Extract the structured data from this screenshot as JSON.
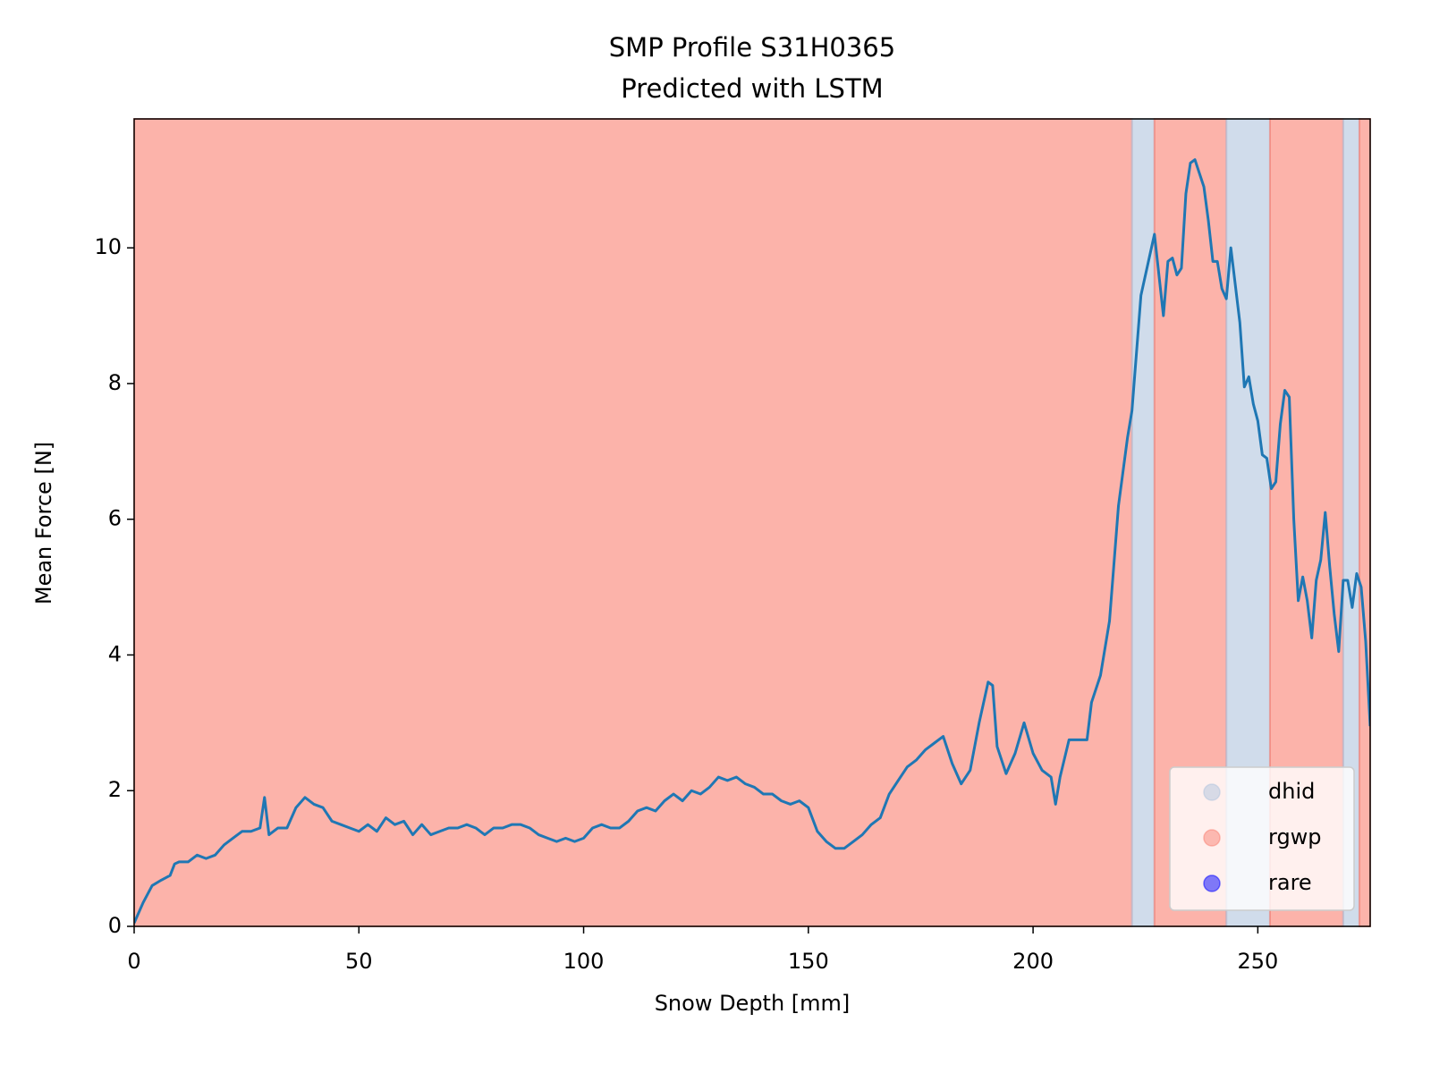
{
  "chart_data": {
    "type": "line",
    "title": "SMP Profile S31H0365",
    "subtitle": "Predicted with LSTM",
    "xlabel": "Snow Depth [mm]",
    "ylabel": "Mean Force [N]",
    "xlim": [
      0,
      275
    ],
    "ylim": [
      0,
      11.9
    ],
    "xticks": [
      0,
      50,
      100,
      150,
      200,
      250
    ],
    "yticks": [
      0,
      2,
      4,
      6,
      8,
      10
    ],
    "line_color": "#1f77b4",
    "classes": [
      {
        "name": "dhid",
        "color": "#b0c4de"
      },
      {
        "name": "rgwp",
        "color": "#fa8072"
      },
      {
        "name": "rare",
        "color": "#0000ff"
      }
    ],
    "legend_position": "lower right",
    "bands": [
      {
        "start": 0,
        "end": 222,
        "class": "rgwp"
      },
      {
        "start": 222,
        "end": 227,
        "class": "dhid"
      },
      {
        "start": 227,
        "end": 243,
        "class": "rgwp"
      },
      {
        "start": 243,
        "end": 252.7,
        "class": "dhid"
      },
      {
        "start": 252.7,
        "end": 269,
        "class": "rgwp"
      },
      {
        "start": 269,
        "end": 272.6,
        "class": "dhid"
      },
      {
        "start": 272.6,
        "end": 275,
        "class": "rgwp"
      }
    ],
    "x": [
      0,
      2,
      4,
      6,
      8,
      9,
      10,
      12,
      14,
      16,
      18,
      20,
      22,
      24,
      26,
      28,
      29,
      30,
      32,
      34,
      36,
      38,
      40,
      42,
      44,
      46,
      48,
      50,
      52,
      54,
      56,
      58,
      60,
      62,
      64,
      66,
      68,
      70,
      72,
      74,
      76,
      78,
      80,
      82,
      84,
      86,
      88,
      90,
      92,
      94,
      96,
      98,
      100,
      102,
      104,
      106,
      108,
      110,
      112,
      114,
      116,
      118,
      120,
      122,
      124,
      126,
      128,
      130,
      132,
      134,
      136,
      138,
      140,
      142,
      144,
      146,
      148,
      150,
      152,
      154,
      156,
      158,
      160,
      162,
      164,
      166,
      168,
      170,
      172,
      174,
      176,
      178,
      180,
      182,
      184,
      186,
      188,
      190,
      191,
      192,
      194,
      196,
      198,
      200,
      202,
      204,
      205,
      206,
      208,
      210,
      212,
      213,
      215,
      217,
      219,
      221,
      222,
      224,
      226,
      227,
      229,
      230,
      231,
      232,
      233,
      234,
      235,
      236,
      237,
      238,
      239,
      240,
      241,
      242,
      243,
      244,
      246,
      247,
      248,
      249,
      250,
      251,
      252,
      253,
      254,
      255,
      256,
      257,
      258,
      259,
      260,
      261,
      262,
      263,
      264,
      265,
      266,
      267,
      268,
      269,
      270,
      271,
      272,
      273,
      274,
      275
    ],
    "values": [
      0.05,
      0.35,
      0.6,
      0.68,
      0.75,
      0.92,
      0.95,
      0.95,
      1.05,
      1.0,
      1.05,
      1.2,
      1.3,
      1.4,
      1.4,
      1.45,
      1.9,
      1.35,
      1.45,
      1.45,
      1.75,
      1.9,
      1.8,
      1.75,
      1.55,
      1.5,
      1.45,
      1.4,
      1.5,
      1.4,
      1.6,
      1.5,
      1.55,
      1.35,
      1.5,
      1.35,
      1.4,
      1.45,
      1.45,
      1.5,
      1.45,
      1.35,
      1.45,
      1.45,
      1.5,
      1.5,
      1.45,
      1.35,
      1.3,
      1.25,
      1.3,
      1.25,
      1.3,
      1.45,
      1.5,
      1.45,
      1.45,
      1.55,
      1.7,
      1.75,
      1.7,
      1.85,
      1.95,
      1.85,
      2.0,
      1.95,
      2.05,
      2.2,
      2.15,
      2.2,
      2.1,
      2.05,
      1.95,
      1.95,
      1.85,
      1.8,
      1.85,
      1.75,
      1.4,
      1.25,
      1.15,
      1.15,
      1.25,
      1.35,
      1.5,
      1.6,
      1.95,
      2.15,
      2.35,
      2.45,
      2.6,
      2.7,
      2.8,
      2.4,
      2.1,
      2.3,
      3.0,
      3.6,
      3.55,
      2.65,
      2.25,
      2.55,
      3.0,
      2.55,
      2.3,
      2.2,
      1.8,
      2.2,
      2.75,
      2.75,
      2.75,
      3.3,
      3.7,
      4.5,
      6.2,
      7.2,
      7.6,
      9.3,
      9.9,
      10.2,
      9.0,
      9.8,
      9.85,
      9.6,
      9.7,
      10.8,
      11.25,
      11.3,
      11.1,
      10.9,
      10.4,
      9.8,
      9.8,
      9.4,
      9.25,
      10.0,
      8.9,
      7.95,
      8.1,
      7.7,
      7.45,
      6.95,
      6.9,
      6.45,
      6.55,
      7.4,
      7.9,
      7.8,
      6.0,
      4.8,
      5.15,
      4.8,
      4.25,
      5.1,
      5.4,
      6.1,
      5.3,
      4.6,
      4.05,
      5.1,
      5.1,
      4.7,
      5.2,
      5.0,
      4.2,
      2.95
    ]
  }
}
